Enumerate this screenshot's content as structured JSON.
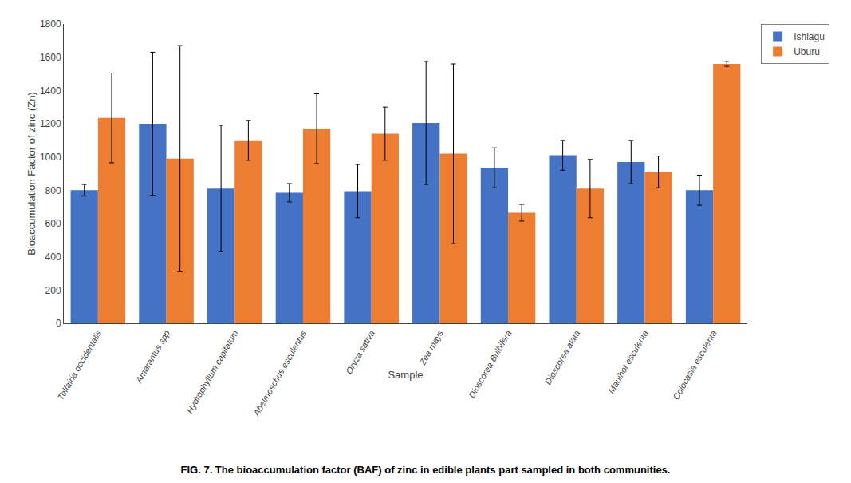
{
  "chart_data": {
    "type": "bar",
    "caption": "FIG. 7. The bioaccumulation factor (BAF) of zinc in edible plants part sampled in both communities.",
    "xlabel": "Sample",
    "ylabel": "Bioaccumulation Factor of zinc (Zn)",
    "categories": [
      "Telfairia occidentalis",
      "Amarantus spp",
      "Hydrophyllum capitatum",
      "Abelmoschus esculentus",
      "Oryza sativa",
      "Zea mays",
      "Dioscorea Bulbifera",
      "Dioscorea alata",
      "Manihot esculenta",
      "Colocasia esculenta"
    ],
    "series": [
      {
        "name": "Ishiagu",
        "color": "#4472C4",
        "values": [
          800,
          1200,
          810,
          785,
          795,
          1205,
          935,
          1010,
          970,
          800
        ],
        "errors": [
          35,
          430,
          380,
          55,
          160,
          370,
          120,
          90,
          130,
          90
        ]
      },
      {
        "name": "Uburu",
        "color": "#ED7D31",
        "values": [
          1235,
          990,
          1100,
          1170,
          1140,
          1020,
          665,
          810,
          910,
          1560
        ],
        "errors": [
          270,
          680,
          120,
          210,
          160,
          540,
          50,
          175,
          95,
          15
        ]
      }
    ],
    "ylim": [
      0,
      1800
    ],
    "yticks": [
      0,
      200,
      400,
      600,
      800,
      1000,
      1200,
      1400,
      1600,
      1800
    ],
    "grid": false,
    "legend": "upper right"
  }
}
